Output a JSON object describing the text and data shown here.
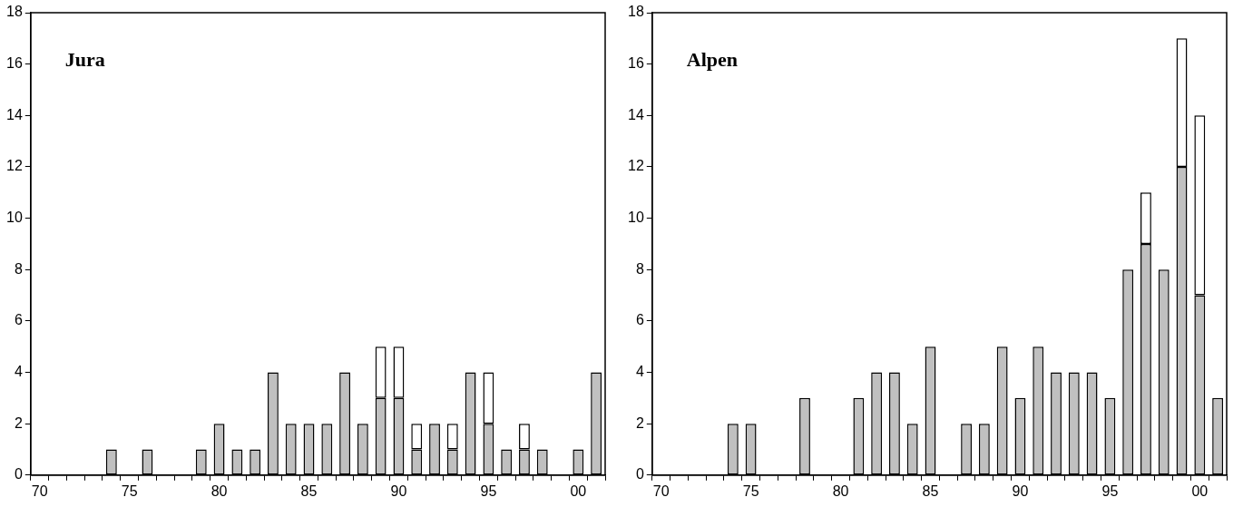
{
  "chart_data": [
    {
      "type": "bar",
      "stacked": true,
      "annotations": [
        "Jura"
      ],
      "categories": [
        "70",
        null,
        null,
        null,
        null,
        "75",
        null,
        null,
        null,
        null,
        "80",
        null,
        null,
        null,
        null,
        "85",
        null,
        null,
        null,
        null,
        "90",
        null,
        null,
        null,
        null,
        "95",
        null,
        null,
        null,
        null,
        "00",
        null
      ],
      "series": [
        {
          "color": "#c0c0c0",
          "values": [
            0,
            0,
            0,
            0,
            1,
            0,
            1,
            0,
            0,
            1,
            2,
            1,
            1,
            4,
            2,
            2,
            2,
            4,
            2,
            3,
            3,
            1,
            2,
            1,
            4,
            2,
            1,
            1,
            1,
            0,
            1,
            4
          ]
        },
        {
          "color": "#ffffff",
          "values": [
            0,
            0,
            0,
            0,
            0,
            0,
            0,
            0,
            0,
            0,
            0,
            0,
            0,
            0,
            0,
            0,
            0,
            0,
            0,
            2,
            2,
            1,
            0,
            1,
            0,
            2,
            0,
            1,
            0,
            0,
            0,
            0
          ]
        }
      ],
      "ylim": [
        0,
        18
      ],
      "yticks": [
        0,
        2,
        4,
        6,
        8,
        10,
        12,
        14,
        16,
        18
      ],
      "grid": false,
      "legend": false
    },
    {
      "type": "bar",
      "stacked": true,
      "annotations": [
        "Alpen"
      ],
      "categories": [
        "70",
        null,
        null,
        null,
        null,
        "75",
        null,
        null,
        null,
        null,
        "80",
        null,
        null,
        null,
        null,
        "85",
        null,
        null,
        null,
        null,
        "90",
        null,
        null,
        null,
        null,
        "95",
        null,
        null,
        null,
        null,
        "00",
        null
      ],
      "series": [
        {
          "color": "#c0c0c0",
          "values": [
            0,
            0,
            0,
            0,
            2,
            2,
            0,
            0,
            3,
            0,
            0,
            3,
            4,
            4,
            2,
            5,
            0,
            2,
            2,
            5,
            3,
            5,
            4,
            4,
            4,
            3,
            8,
            9,
            8,
            12,
            7,
            3
          ]
        },
        {
          "color": "#ffffff",
          "values": [
            0,
            0,
            0,
            0,
            0,
            0,
            0,
            0,
            0,
            0,
            0,
            0,
            0,
            0,
            0,
            0,
            0,
            0,
            0,
            0,
            0,
            0,
            0,
            0,
            0,
            0,
            0,
            2,
            0,
            5,
            7,
            0
          ]
        }
      ],
      "ylim": [
        0,
        18
      ],
      "yticks": [
        0,
        2,
        4,
        6,
        8,
        10,
        12,
        14,
        16,
        18
      ],
      "grid": false,
      "legend": false
    }
  ]
}
